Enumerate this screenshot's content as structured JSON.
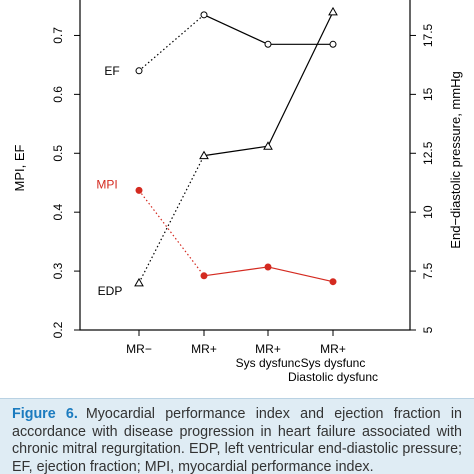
{
  "chart_data": {
    "type": "line",
    "categories": [
      [
        "MR−"
      ],
      [
        "MR+"
      ],
      [
        "MR+",
        "Sys dysfunc"
      ],
      [
        "MR+",
        "Sys dysfunc",
        "Diastolic dysfunc"
      ]
    ],
    "left_axis": {
      "label": "MPI, EF",
      "range": [
        0.2,
        0.75
      ],
      "ticks": [
        "0.2",
        "0.3",
        "0.4",
        "0.5",
        "0.6",
        "0.7"
      ]
    },
    "right_axis": {
      "label": "End−diastolic pressure, mmHg",
      "range": [
        5,
        18.75
      ],
      "ticks": [
        "5",
        "7.5",
        "10",
        "12.5",
        "15",
        "17.5"
      ]
    },
    "series": [
      {
        "name": "EF",
        "axis": "left",
        "values": [
          0.64,
          0.735,
          0.685,
          0.685
        ],
        "marker": "open-circle",
        "color": "#000000",
        "segments": [
          "dotted",
          "solid",
          "solid"
        ]
      },
      {
        "name": "MPI",
        "axis": "left",
        "values": [
          0.437,
          0.292,
          0.307,
          0.282
        ],
        "marker": "filled-circle",
        "color": "#d42a20",
        "segments": [
          "dotted",
          "solid",
          "solid"
        ]
      },
      {
        "name": "EDP",
        "axis": "right",
        "values": [
          7,
          12.4,
          12.8,
          18.5
        ],
        "marker": "open-triangle",
        "color": "#000000",
        "segments": [
          "dotted",
          "solid",
          "solid"
        ]
      }
    ],
    "grid": false,
    "legend": "none"
  },
  "caption": {
    "label": "Figure 6.",
    "text": "Myocardial performance index and ejection fraction in accordance with disease progression in heart failure associated with chronic mitral regurgitation. EDP, left ventricular end-diastolic pressure; EF, ejection fraction; MPI, myocardial performance index."
  }
}
